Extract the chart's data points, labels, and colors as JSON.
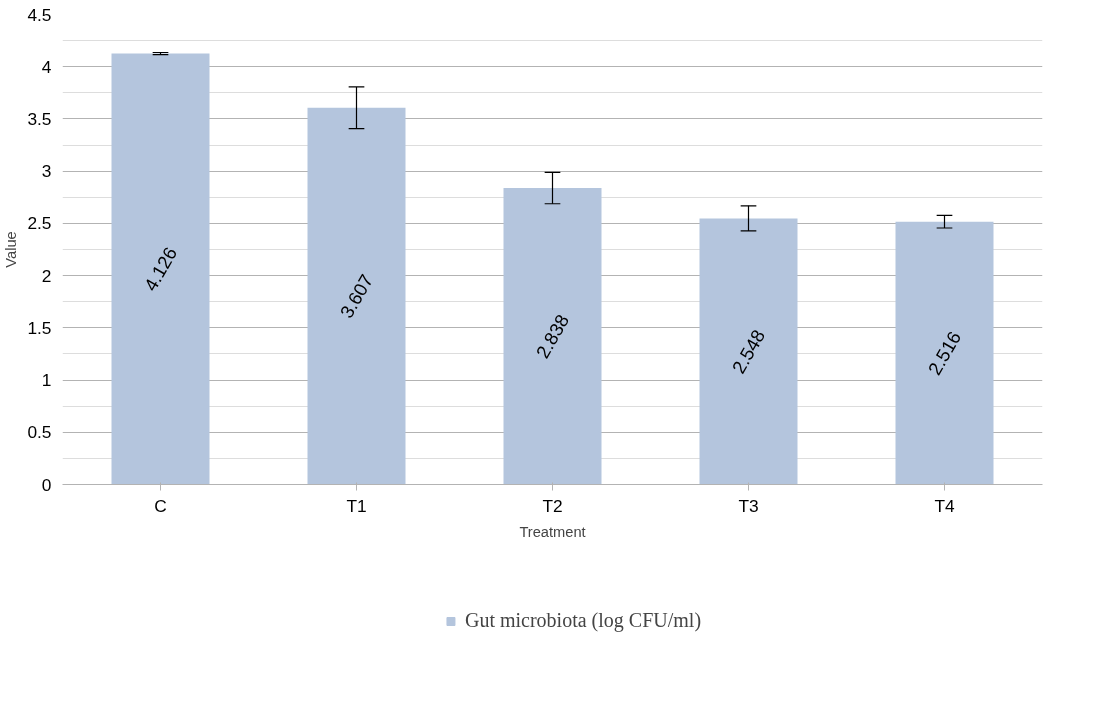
{
  "chart_data": {
    "type": "bar",
    "xlabel": "Treatment",
    "ylabel": "Value",
    "categories": [
      "C",
      "T1",
      "T2",
      "T3",
      "T4"
    ],
    "series": [
      {
        "name": "Gut microbiota (log CFU/ml)",
        "color": "#b4c5dd",
        "values": [
          4.126,
          3.607,
          2.838,
          2.548,
          2.516
        ],
        "errors": [
          0.01,
          0.2,
          0.15,
          0.12,
          0.06
        ]
      }
    ],
    "ylim": [
      0,
      4.5
    ],
    "yticks": [
      0,
      0.5,
      1,
      1.5,
      2,
      2.5,
      3,
      3.5,
      4,
      4.5
    ],
    "grid": "y",
    "legend": "bottom",
    "data_labels": true
  }
}
